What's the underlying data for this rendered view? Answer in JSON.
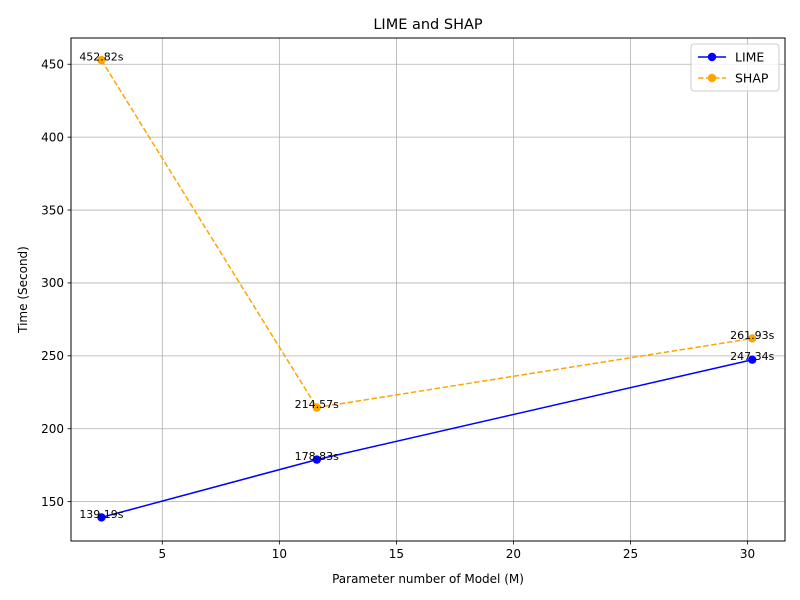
{
  "chart_data": {
    "type": "line",
    "title": "LIME and SHAP",
    "xlabel": "Parameter number of Model (M)",
    "ylabel": "Time (Second)",
    "xlim": [
      1.1,
      31.6
    ],
    "ylim": [
      123.0,
      468.0
    ],
    "xticks": [
      5,
      10,
      15,
      20,
      25,
      30
    ],
    "yticks": [
      150,
      200,
      250,
      300,
      350,
      400,
      450
    ],
    "grid": true,
    "legend_position": "top-right",
    "series": [
      {
        "name": "LIME",
        "color": "#0000ff",
        "line_style": "solid",
        "marker": "circle",
        "x": [
          2.4,
          11.6,
          30.2
        ],
        "y": [
          139.19,
          178.83,
          247.34
        ],
        "labels": [
          "139.19s",
          "178.83s",
          "247.34s"
        ]
      },
      {
        "name": "SHAP",
        "color": "#ffa500",
        "line_style": "dashed",
        "marker": "circle",
        "x": [
          2.4,
          11.6,
          30.2
        ],
        "y": [
          452.82,
          214.57,
          261.93
        ],
        "labels": [
          "452.82s",
          "214.57s",
          "261.93s"
        ]
      }
    ]
  }
}
